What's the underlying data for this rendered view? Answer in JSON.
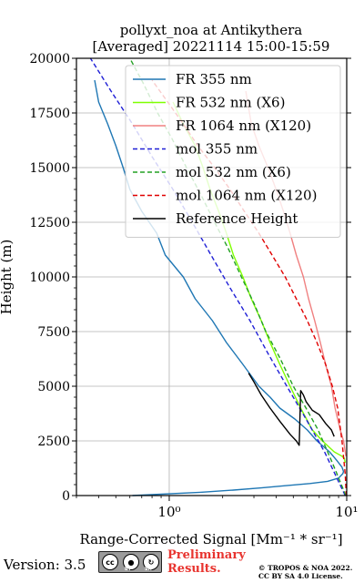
{
  "chart_data": {
    "type": "line",
    "title": "pollyxt_noa at Antikythera",
    "subtitle": "[Averaged] 20221114 15:00-15:59",
    "xlabel": "Range-Corrected Signal [Mm⁻¹ * sr⁻¹]",
    "ylabel": "Height (m)",
    "xscale": "log",
    "xlim": [
      0.3,
      10
    ],
    "ylim": [
      0,
      20000
    ],
    "y_ticks": [
      0,
      2500,
      5000,
      7500,
      10000,
      12500,
      15000,
      17500,
      20000
    ],
    "x_tick_labels": [
      {
        "value": 1,
        "text": "10⁰"
      },
      {
        "value": 10,
        "text": "10¹"
      }
    ],
    "grid": true,
    "legend_position": "top-right",
    "series": [
      {
        "name": "FR 355 nm",
        "color": "#1f77b4",
        "style": "solid",
        "x": [
          0.62,
          1.5,
          2.3,
          3.3,
          4.5,
          6.2,
          7.8,
          9.0,
          9.5,
          9.6,
          9.4,
          8.8,
          8.0,
          6.8,
          6.0,
          5.1,
          4.2,
          3.7,
          3.2,
          2.6,
          2.1,
          1.75,
          1.4,
          1.2,
          0.95,
          0.85,
          0.7,
          0.6,
          0.55,
          0.5,
          0.45,
          0.4,
          0.38
        ],
        "y": [
          0,
          150,
          250,
          350,
          450,
          550,
          650,
          800,
          1000,
          1100,
          1300,
          1600,
          2000,
          2500,
          3000,
          3500,
          4000,
          4500,
          5000,
          6000,
          7000,
          8000,
          9000,
          10000,
          11000,
          12000,
          13000,
          14000,
          15000,
          16000,
          17000,
          18000,
          19000
        ]
      },
      {
        "name": "FR 532 nm (X6)",
        "color": "#7fff00",
        "style": "solid",
        "x": [
          9.8,
          9.7,
          9.4,
          8.5,
          7.3,
          6.4,
          5.5,
          4.8,
          4.2,
          3.7,
          3.3,
          2.9,
          2.6,
          2.3,
          2.1,
          1.9,
          1.7,
          1.55,
          1.4,
          1.2,
          1.05
        ],
        "y": [
          1500,
          1700,
          1800,
          2000,
          2500,
          3000,
          4000,
          5000,
          6000,
          7000,
          8000,
          9000,
          10000,
          11000,
          12000,
          13000,
          14000,
          15000,
          16000,
          17000,
          18000
        ]
      },
      {
        "name": "FR 1064 nm (X120)",
        "color": "#f08080",
        "style": "solid",
        "x": [
          9.9,
          9.6,
          9.2,
          8.6,
          8.2,
          7.6,
          7.1,
          6.6,
          6.1,
          5.7,
          5.2,
          4.8,
          4.4,
          4.0,
          3.6,
          3.2,
          2.9,
          2.7
        ],
        "y": [
          1800,
          2500,
          3000,
          4000,
          5000,
          6000,
          7000,
          8000,
          9000,
          10000,
          11000,
          12000,
          13000,
          14000,
          15000,
          16000,
          17000,
          18500
        ]
      },
      {
        "name": "mol 355 nm",
        "color": "#1f1fd6",
        "style": "dashed",
        "x": [
          9.8,
          7.5,
          5.9,
          4.6,
          3.6,
          2.85,
          2.2,
          1.72,
          1.35,
          1.05,
          0.8,
          0.62,
          0.47,
          0.36
        ],
        "y": [
          0,
          2000,
          3500,
          5000,
          6500,
          8000,
          9500,
          11000,
          12500,
          14000,
          15500,
          17000,
          18500,
          20000
        ]
      },
      {
        "name": "mol 532 nm (X6)",
        "color": "#22a022",
        "style": "dashed",
        "x": [
          9.9,
          8.3,
          6.9,
          5.9,
          5.0,
          4.2,
          3.5,
          3.0,
          2.55,
          2.15,
          1.8,
          1.5,
          1.25,
          1.04,
          0.86,
          0.72,
          0.6
        ],
        "y": [
          0,
          1500,
          3000,
          4000,
          5000,
          6300,
          7500,
          8800,
          10000,
          11300,
          12500,
          13800,
          15000,
          16300,
          17500,
          18800,
          20000
        ]
      },
      {
        "name": "mol 1064 nm (X120)",
        "color": "#e00000",
        "style": "dashed",
        "x": [
          9.95,
          9.8,
          9.4,
          8.9,
          8.3,
          7.6,
          6.8,
          6.0,
          5.2,
          4.5,
          3.8,
          3.2,
          2.65,
          2.2,
          1.8,
          1.45,
          1.2,
          0.98,
          0.8
        ],
        "y": [
          0,
          1000,
          2500,
          4000,
          5000,
          6000,
          7000,
          8000,
          9000,
          10000,
          11000,
          12000,
          13000,
          14000,
          15000,
          16000,
          17000,
          18000,
          19000
        ]
      },
      {
        "name": "Reference Height",
        "color": "#000000",
        "style": "solid",
        "x": [
          2.8,
          3.0,
          3.3,
          3.7,
          4.2,
          4.8,
          5.2,
          5.4,
          5.5,
          5.7,
          5.9,
          6.4,
          7.0,
          7.6,
          8.2,
          8.5
        ],
        "y": [
          5600,
          5200,
          4600,
          4000,
          3400,
          2800,
          2500,
          2300,
          4800,
          4600,
          4300,
          3900,
          3700,
          3300,
          3000,
          2700
        ]
      }
    ]
  },
  "footer": {
    "version_label": "Version: 3.5",
    "badge_by": "BY",
    "badge_sa": "SA",
    "preliminary_line1": "Preliminary",
    "preliminary_line2": "Results.",
    "copyright_line1": "© TROPOS & NOA 2022.",
    "copyright_line2": "CC BY SA 4.0 License."
  }
}
